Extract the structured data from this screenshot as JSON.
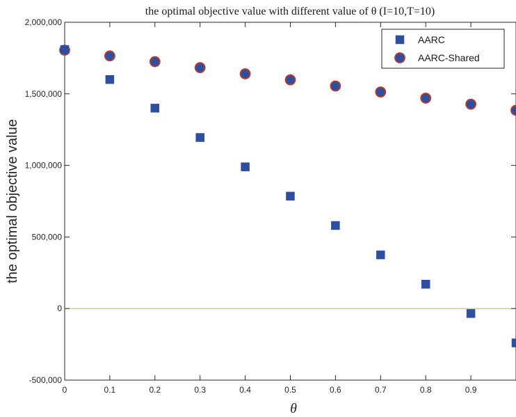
{
  "chart_data": {
    "type": "scatter",
    "title": "the optimal objective value with different value of θ (I=10,T=10)",
    "xlabel": "θ",
    "ylabel": "the optimal objective value",
    "xlim": [
      0,
      1
    ],
    "ylim": [
      -500000,
      2000000
    ],
    "x_ticks": [
      "0",
      "0.1",
      "0.2",
      "0.3",
      "0.4",
      "0.5",
      "0.6",
      "0.7",
      "0.8",
      "0.9"
    ],
    "y_ticks": [
      "-500,000",
      "0",
      "500,000",
      "1,000,000",
      "1,500,000",
      "2,000,000"
    ],
    "x": [
      0,
      0.1,
      0.2,
      0.3,
      0.4,
      0.5,
      0.6,
      0.7,
      0.8,
      0.9,
      1.0
    ],
    "series": [
      {
        "name": "AARC",
        "marker": "square",
        "color": "#2e4fa0",
        "values": [
          1810000,
          1600000,
          1400000,
          1195000,
          990000,
          785000,
          580000,
          375000,
          170000,
          -35000,
          -240000
        ]
      },
      {
        "name": "AARC-Shared",
        "marker": "circle",
        "color": "#2e4fa0",
        "edge_color": "#c0392b",
        "values": [
          1805000,
          1765000,
          1725000,
          1683000,
          1640000,
          1598000,
          1555000,
          1513000,
          1470000,
          1428000,
          1385000
        ]
      }
    ],
    "reference_line": {
      "y": 0,
      "color": "#d6b33c"
    },
    "grid": false,
    "legend_position": "top-right"
  }
}
